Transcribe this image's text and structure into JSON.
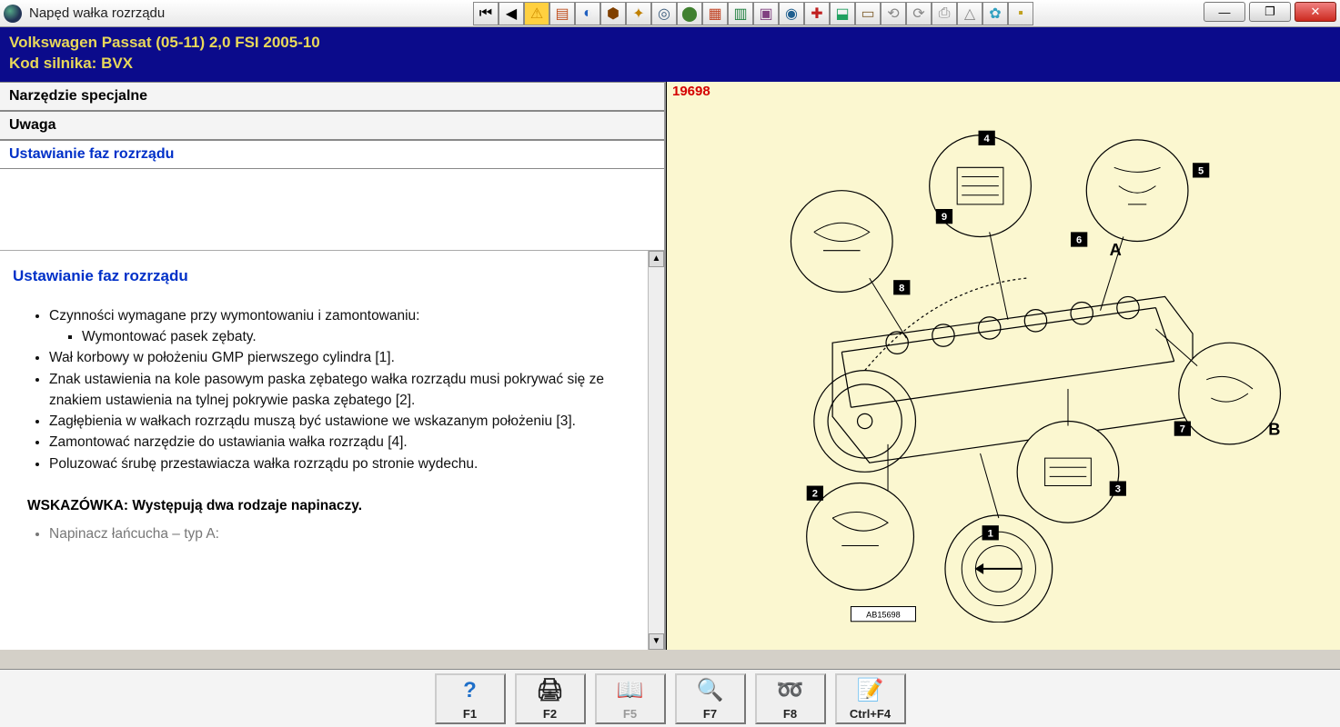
{
  "window": {
    "title": "Napęd wałka rozrządu"
  },
  "toolbar_icons": [
    {
      "name": "nav-first",
      "glyph": "⏮",
      "color": "#000"
    },
    {
      "name": "nav-prev",
      "glyph": "◀",
      "color": "#000"
    },
    {
      "name": "warning",
      "glyph": "⚠",
      "color": "#d09000",
      "bg": "#ffd040"
    },
    {
      "name": "tool-1",
      "glyph": "▤",
      "color": "#c05020"
    },
    {
      "name": "tool-2",
      "glyph": "◐",
      "color": "#2060c0"
    },
    {
      "name": "tool-3",
      "glyph": "⬢",
      "color": "#804000"
    },
    {
      "name": "tool-4",
      "glyph": "✦",
      "color": "#c08000"
    },
    {
      "name": "tool-5",
      "glyph": "◎",
      "color": "#406080"
    },
    {
      "name": "tool-6",
      "glyph": "⬤",
      "color": "#408030"
    },
    {
      "name": "tool-7",
      "glyph": "▦",
      "color": "#c04020"
    },
    {
      "name": "tool-8",
      "glyph": "▥",
      "color": "#208040"
    },
    {
      "name": "tool-9",
      "glyph": "▣",
      "color": "#804080"
    },
    {
      "name": "tool-10",
      "glyph": "◉",
      "color": "#206090"
    },
    {
      "name": "tool-11",
      "glyph": "✚",
      "color": "#c02020"
    },
    {
      "name": "tool-12",
      "glyph": "⬓",
      "color": "#20a060"
    },
    {
      "name": "tool-13",
      "glyph": "▭",
      "color": "#806030"
    },
    {
      "name": "tool-14",
      "glyph": "⟲",
      "color": "#888"
    },
    {
      "name": "tool-15",
      "glyph": "⟳",
      "color": "#888"
    },
    {
      "name": "tool-16",
      "glyph": "⎙",
      "color": "#888"
    },
    {
      "name": "tool-17",
      "glyph": "△",
      "color": "#888"
    },
    {
      "name": "tool-18",
      "glyph": "✿",
      "color": "#30a0c0"
    },
    {
      "name": "tool-19",
      "glyph": "▪",
      "color": "#c0a020"
    }
  ],
  "header": {
    "vehicle": "Volkswagen   Passat (05-11) 2,0 FSI 2005-10",
    "engine_label": "Kod silnika: BVX"
  },
  "sections": {
    "special_tools": "Narzędzie specjalne",
    "note": "Uwaga",
    "timing": "Ustawianie faz rozrządu"
  },
  "content": {
    "heading": "Ustawianie faz rozrządu",
    "item1": "Czynności wymagane przy wymontowaniu i zamontowaniu:",
    "item1a": "Wymontować pasek zębaty.",
    "item2": "Wał korbowy w położeniu GMP pierwszego cylindra [1].",
    "item3": "Znak ustawienia na kole pasowym paska zębatego wałka rozrządu musi pokrywać się ze znakiem ustawienia na tylnej pokrywie paska zębatego [2].",
    "item4": "Zagłębienia w wałkach rozrządu muszą być ustawione we wskazanym położeniu [3].",
    "item5": "Zamontować narzędzie do ustawiania wałka rozrządu [4].",
    "item6": "Poluzować śrubę przestawiacza wałka rozrządu po stronie wydechu.",
    "hint": "WSKAZÓWKA: Występują dwa rodzaje napinaczy.",
    "cutoff": "Napinacz łańcucha – typ A:"
  },
  "diagram": {
    "id": "19698",
    "ref_label": "AB15698",
    "callout_labels": [
      "1",
      "2",
      "3",
      "4",
      "5",
      "6",
      "7",
      "8",
      "9"
    ],
    "letter_labels": [
      "A",
      "B"
    ]
  },
  "footer": {
    "f1": "F1",
    "f2": "F2",
    "f5": "F5",
    "f7": "F7",
    "f8": "F8",
    "ctrlf4": "Ctrl+F4"
  }
}
